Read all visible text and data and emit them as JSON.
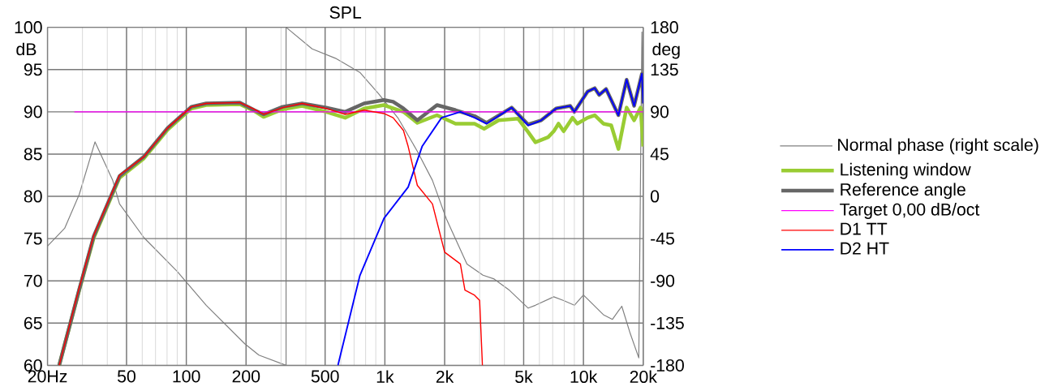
{
  "chart_data": {
    "type": "line",
    "title": "SPL",
    "ylabel": "dB",
    "y2label": "deg",
    "log": "x",
    "grid": true,
    "legend": "right",
    "xlim": [
      20,
      20000
    ],
    "xticks": [
      {
        "value": 20,
        "label": "20Hz"
      },
      50,
      100,
      200,
      500,
      {
        "value": 1000,
        "label": "1k"
      },
      {
        "value": 2000,
        "label": "2k"
      },
      {
        "value": 5000,
        "label": "5k"
      },
      {
        "value": 10000,
        "label": "10k"
      },
      {
        "value": 20000,
        "label": "20k"
      }
    ],
    "ylim": [
      60,
      100
    ],
    "yticks": [
      60,
      65,
      70,
      75,
      80,
      85,
      90,
      95,
      100
    ],
    "y2lim": [
      -180,
      180
    ],
    "y2ticks": [
      -180,
      -135,
      -90,
      -45,
      0,
      45,
      90,
      135,
      180
    ],
    "series": [
      {
        "name": "Normal phase (right scale)",
        "color": "#808080",
        "axis": "y2",
        "x": [
          20,
          24.4,
          28.9,
          34.7,
          42.6,
          46.1,
          61.2,
          90,
          126,
          197,
          232,
          318,
          318,
          430,
          564,
          748,
          932,
          1168,
          1457,
          1736,
          2040,
          2590,
          3120,
          3550,
          4240,
          5270,
          5730,
          7090,
          7950,
          9000,
          10000,
          12600,
          14000,
          15600,
          17200,
          19000,
          19700,
          20000
        ],
        "values": [
          -53,
          -34,
          2,
          58,
          17,
          -8,
          -44,
          -80,
          -116,
          -157,
          -169,
          -180,
          180,
          157,
          147,
          132,
          109,
          83,
          48,
          17,
          -24,
          -72,
          -84,
          -88,
          -100,
          -119,
          -116,
          -107,
          -111,
          -116,
          -105,
          -126,
          -131,
          -117,
          -146,
          -172,
          175,
          53
        ]
      },
      {
        "name": "Listening window",
        "color": "#99cc33",
        "x": [
          22.9,
          28.9,
          34.2,
          46.1,
          61.2,
          80.6,
          106,
          126,
          186,
          220,
          245,
          306,
          383,
          506,
          631,
          786,
          990,
          1240,
          1457,
          1830,
          2270,
          2830,
          3160,
          3740,
          4680,
          5270,
          5730,
          6640,
          7090,
          7490,
          7950,
          8810,
          9300,
          10500,
          11400,
          12600,
          13800,
          15000,
          16500,
          18000,
          19400,
          20000
        ],
        "values": [
          60,
          68.9,
          75.1,
          82.2,
          84.5,
          87.9,
          90.4,
          90.8,
          90.9,
          90.1,
          89.4,
          90.3,
          90.7,
          90.0,
          89.3,
          90.4,
          90.8,
          90.0,
          88.7,
          89.6,
          88.6,
          88.6,
          88.0,
          89.0,
          89.2,
          87.6,
          86.4,
          87.0,
          87.7,
          88.6,
          87.7,
          89.3,
          88.6,
          89.3,
          89.6,
          88.6,
          88.4,
          85.6,
          90.5,
          89.0,
          90.5,
          85.9
        ]
      },
      {
        "name": "Reference angle",
        "color": "#666666",
        "x": [
          22.9,
          28.9,
          34.2,
          46.1,
          61.2,
          80.6,
          106,
          126,
          186,
          220,
          245,
          306,
          383,
          506,
          631,
          786,
          990,
          1100,
          1240,
          1457,
          1830,
          2270,
          2830,
          3250,
          4350,
          5270,
          6130,
          7280,
          8580,
          9000,
          10500,
          11400,
          12000,
          13000,
          15000,
          16500,
          18000,
          19700,
          20000
        ],
        "values": [
          60,
          69.0,
          75.3,
          82.4,
          84.7,
          88.1,
          90.6,
          91.0,
          91.1,
          90.2,
          89.7,
          90.6,
          91.0,
          90.5,
          90.0,
          91.0,
          91.4,
          91.2,
          90.4,
          89.0,
          90.8,
          90.2,
          89.5,
          88.7,
          90.5,
          88.5,
          89.0,
          90.4,
          90.7,
          90.0,
          92.4,
          92.8,
          92.0,
          92.7,
          89.6,
          93.8,
          90.7,
          94.5,
          91.0
        ]
      },
      {
        "name": "Target 0,00 dB/oct",
        "color": "#ff00ff",
        "x": [
          27.3,
          20000
        ],
        "values": [
          90,
          90
        ]
      },
      {
        "name": "D1 TT",
        "color": "#ff0000",
        "x": [
          22.9,
          28.9,
          34.2,
          46.1,
          61.2,
          80.6,
          106,
          126,
          186,
          220,
          245,
          306,
          383,
          506,
          631,
          786,
          990,
          1100,
          1240,
          1310,
          1457,
          1736,
          2000,
          2400,
          2530,
          2830,
          3000,
          3100
        ],
        "values": [
          60,
          69.2,
          75.4,
          82.5,
          84.7,
          88.1,
          90.6,
          91.0,
          91.1,
          90.3,
          89.7,
          90.5,
          91.0,
          90.4,
          89.7,
          90.2,
          89.8,
          89.3,
          87.8,
          85.9,
          81.3,
          79.1,
          73.4,
          72.0,
          68.9,
          68.3,
          67.7,
          60
        ]
      },
      {
        "name": "D2 HT",
        "color": "#0000ff",
        "x": [
          580,
          748,
          990,
          1310,
          1540,
          1930,
          2400,
          2830,
          3250,
          4350,
          5270,
          6130,
          7280,
          8580,
          9000,
          10500,
          11400,
          12000,
          13000,
          15000,
          16500,
          18000,
          19700,
          20000
        ],
        "values": [
          60,
          70.6,
          77.4,
          81.1,
          85.9,
          89.3,
          90.0,
          89.3,
          88.6,
          90.5,
          88.4,
          89.0,
          90.4,
          90.7,
          90.0,
          92.4,
          92.8,
          92.0,
          92.7,
          89.6,
          93.8,
          90.7,
          94.5,
          91.0
        ]
      }
    ]
  }
}
